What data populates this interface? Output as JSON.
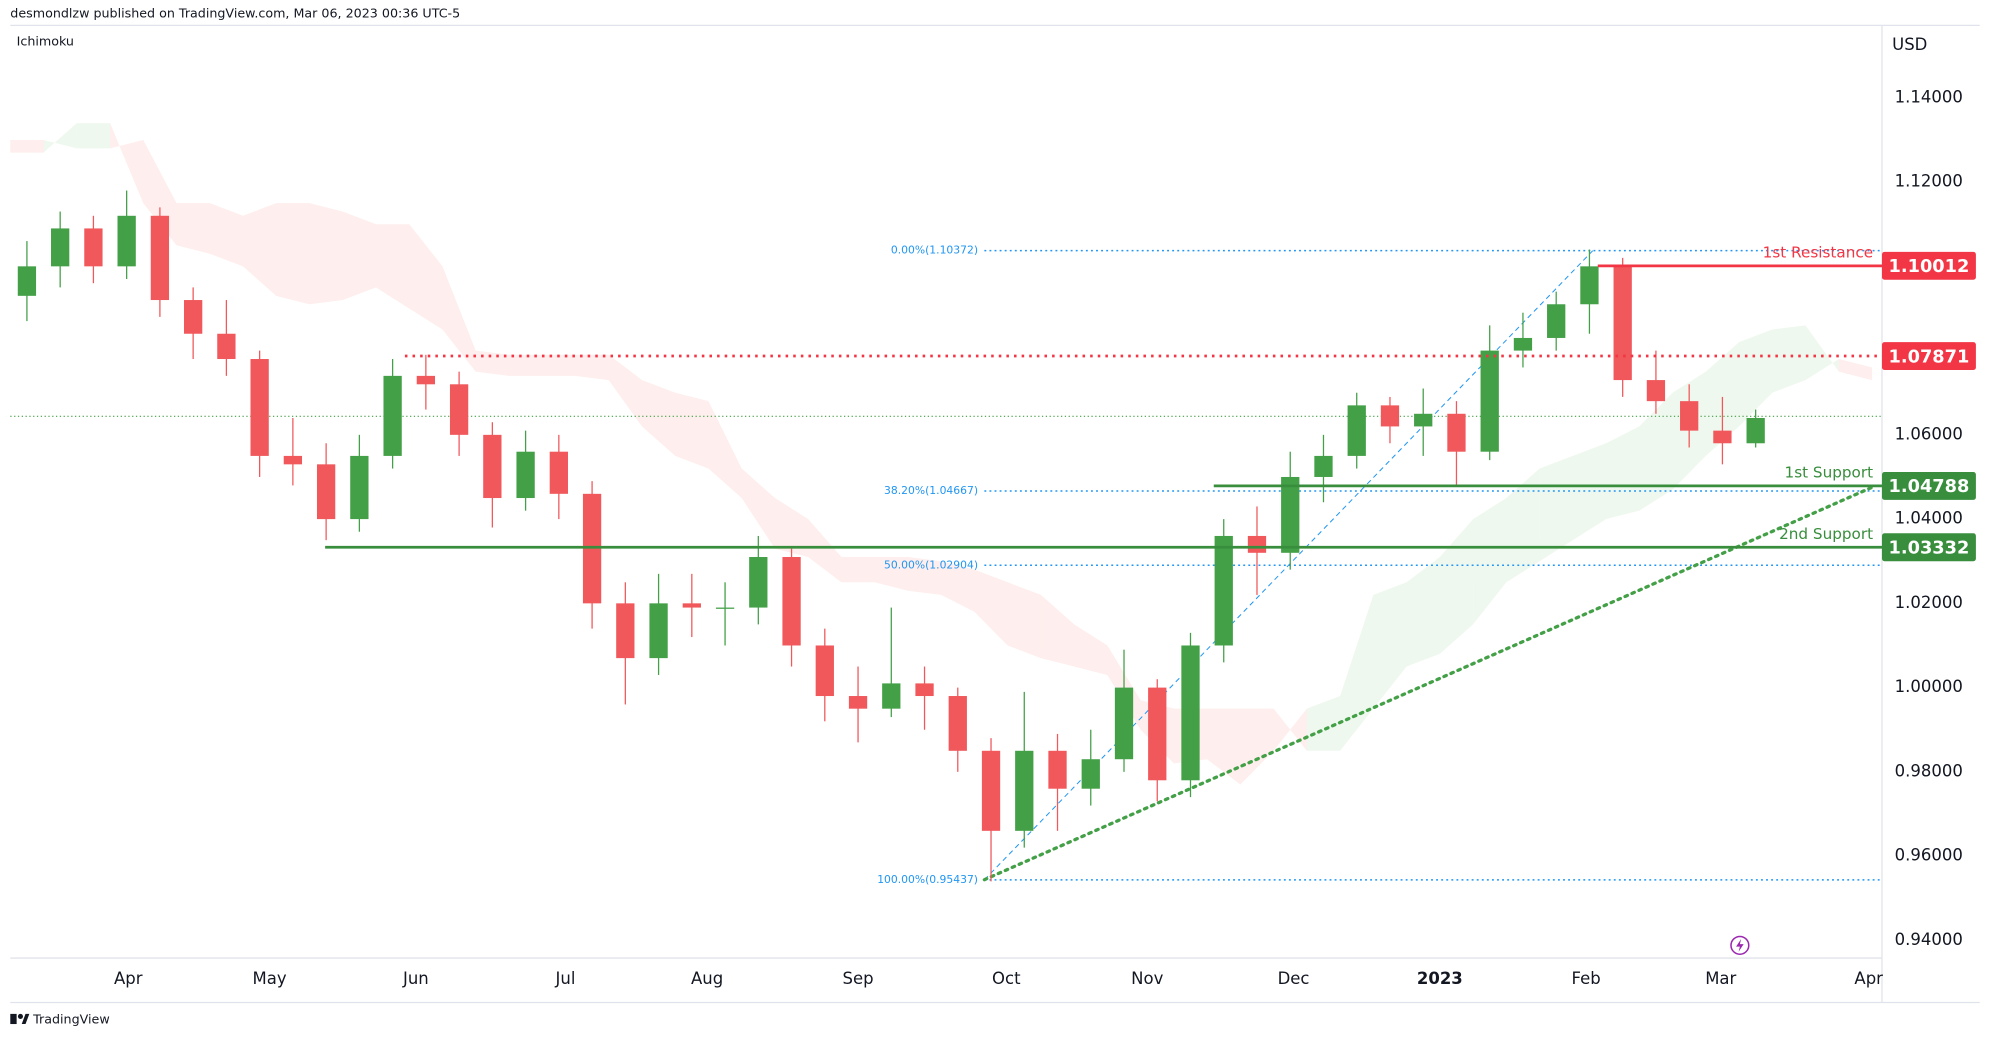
{
  "chart_data": {
    "type": "candlestick",
    "header": "desmondlzw published on TradingView.com, Mar 06, 2023 00:36 UTC-5",
    "title": "Ichimoku",
    "currency": "USD",
    "brand": "TradingView",
    "colors": {
      "up": "#43a047",
      "down": "#f0585b",
      "cloud_up": "#4caf50",
      "cloud_down": "#f44336"
    },
    "xlim": [
      0,
      56.3
    ],
    "xticks": [
      {
        "value": 3.55,
        "label": "Apr"
      },
      {
        "value": 7.8,
        "label": "May"
      },
      {
        "value": 12.2,
        "label": "Jun"
      },
      {
        "value": 16.7,
        "label": "Jul"
      },
      {
        "value": 20.96,
        "label": "Aug"
      },
      {
        "value": 25.5,
        "label": "Sep"
      },
      {
        "value": 29.96,
        "label": "Oct"
      },
      {
        "value": 34.2,
        "label": "Nov"
      },
      {
        "value": 38.6,
        "label": "Dec"
      },
      {
        "value": 43.0,
        "label": "2023"
      },
      {
        "value": 47.4,
        "label": "Feb"
      },
      {
        "value": 51.45,
        "label": "Mar"
      },
      {
        "value": 55.9,
        "label": "Apr"
      }
    ],
    "ylim": [
      0.9358,
      1.1572
    ],
    "yticks": [
      {
        "value": 1.14,
        "label": "1.14000"
      },
      {
        "value": 1.12,
        "label": "1.12000"
      },
      {
        "value": 1.06,
        "label": "1.06000"
      },
      {
        "value": 1.04,
        "label": "1.04000"
      },
      {
        "value": 1.02,
        "label": "1.02000"
      },
      {
        "value": 1.0,
        "label": "1.00000"
      },
      {
        "value": 0.98,
        "label": "0.98000"
      },
      {
        "value": 0.96,
        "label": "0.96000"
      },
      {
        "value": 0.94,
        "label": "0.94000"
      }
    ],
    "ohlc": [
      [
        1.093,
        1.106,
        1.087,
        1.1
      ],
      [
        1.1,
        1.113,
        1.095,
        1.109
      ],
      [
        1.109,
        1.112,
        1.096,
        1.1
      ],
      [
        1.1,
        1.118,
        1.097,
        1.112
      ],
      [
        1.112,
        1.114,
        1.088,
        1.092
      ],
      [
        1.092,
        1.095,
        1.078,
        1.084
      ],
      [
        1.084,
        1.092,
        1.074,
        1.078
      ],
      [
        1.078,
        1.08,
        1.05,
        1.055
      ],
      [
        1.055,
        1.064,
        1.048,
        1.053
      ],
      [
        1.053,
        1.058,
        1.035,
        1.04
      ],
      [
        1.04,
        1.06,
        1.037,
        1.055
      ],
      [
        1.055,
        1.078,
        1.052,
        1.074
      ],
      [
        1.074,
        1.079,
        1.066,
        1.072
      ],
      [
        1.072,
        1.075,
        1.055,
        1.06
      ],
      [
        1.06,
        1.063,
        1.038,
        1.045
      ],
      [
        1.045,
        1.061,
        1.042,
        1.056
      ],
      [
        1.056,
        1.06,
        1.04,
        1.046
      ],
      [
        1.046,
        1.049,
        1.014,
        1.02
      ],
      [
        1.02,
        1.025,
        0.996,
        1.007
      ],
      [
        1.007,
        1.027,
        1.003,
        1.02
      ],
      [
        1.02,
        1.027,
        1.012,
        1.019
      ],
      [
        1.019,
        1.025,
        1.01,
        1.019
      ],
      [
        1.019,
        1.036,
        1.015,
        1.031
      ],
      [
        1.031,
        1.033,
        1.005,
        1.01
      ],
      [
        1.01,
        1.014,
        0.992,
        0.998
      ],
      [
        0.998,
        1.005,
        0.987,
        0.995
      ],
      [
        0.995,
        1.019,
        0.993,
        1.001
      ],
      [
        1.001,
        1.005,
        0.99,
        0.998
      ],
      [
        0.998,
        1.0,
        0.98,
        0.985
      ],
      [
        0.985,
        0.988,
        0.954,
        0.966
      ],
      [
        0.966,
        0.999,
        0.962,
        0.985
      ],
      [
        0.985,
        0.989,
        0.966,
        0.976
      ],
      [
        0.976,
        0.99,
        0.972,
        0.983
      ],
      [
        0.983,
        1.009,
        0.98,
        1.0
      ],
      [
        1.0,
        1.002,
        0.973,
        0.978
      ],
      [
        0.978,
        1.013,
        0.974,
        1.01
      ],
      [
        1.01,
        1.04,
        1.006,
        1.036
      ],
      [
        1.036,
        1.043,
        1.022,
        1.032
      ],
      [
        1.032,
        1.056,
        1.028,
        1.05
      ],
      [
        1.05,
        1.06,
        1.044,
        1.055
      ],
      [
        1.055,
        1.07,
        1.052,
        1.067
      ],
      [
        1.067,
        1.069,
        1.058,
        1.062
      ],
      [
        1.062,
        1.071,
        1.055,
        1.065
      ],
      [
        1.065,
        1.068,
        1.048,
        1.056
      ],
      [
        1.056,
        1.086,
        1.054,
        1.08
      ],
      [
        1.08,
        1.089,
        1.076,
        1.083
      ],
      [
        1.083,
        1.094,
        1.08,
        1.091
      ],
      [
        1.091,
        1.104,
        1.084,
        1.1
      ],
      [
        1.1,
        1.102,
        1.069,
        1.073
      ],
      [
        1.073,
        1.08,
        1.065,
        1.068
      ],
      [
        1.068,
        1.072,
        1.057,
        1.061
      ],
      [
        1.061,
        1.069,
        1.053,
        1.058
      ],
      [
        1.058,
        1.066,
        1.057,
        1.064
      ]
    ],
    "cloud": {
      "span_a": [
        1.127,
        1.127,
        1.134,
        1.134,
        1.115,
        1.105,
        1.103,
        1.1,
        1.093,
        1.091,
        1.092,
        1.095,
        1.09,
        1.085,
        1.075,
        1.074,
        1.074,
        1.074,
        1.073,
        1.062,
        1.055,
        1.052,
        1.045,
        1.033,
        1.031,
        1.025,
        1.025,
        1.023,
        1.022,
        1.018,
        1.01,
        1.007,
        1.005,
        1.003,
        0.99,
        0.982,
        0.983,
        0.977,
        0.985,
        0.995,
        0.998,
        1.022,
        1.025,
        1.031,
        1.04,
        1.045,
        1.052,
        1.055,
        1.058,
        1.062,
        1.07,
        1.075,
        1.082,
        1.085,
        1.086,
        1.075,
        1.073
      ],
      "span_b": [
        1.13,
        1.13,
        1.128,
        1.128,
        1.13,
        1.115,
        1.115,
        1.112,
        1.115,
        1.115,
        1.113,
        1.11,
        1.11,
        1.1,
        1.08,
        1.079,
        1.079,
        1.079,
        1.079,
        1.073,
        1.07,
        1.068,
        1.052,
        1.045,
        1.04,
        1.031,
        1.031,
        1.031,
        1.03,
        1.028,
        1.025,
        1.022,
        1.015,
        1.01,
        0.997,
        0.995,
        0.995,
        0.995,
        0.995,
        0.985,
        0.985,
        0.995,
        1.005,
        1.008,
        1.015,
        1.025,
        1.03,
        1.035,
        1.04,
        1.042,
        1.047,
        1.055,
        1.062,
        1.07,
        1.073,
        1.078,
        1.076
      ]
    },
    "last_price": 1.0644,
    "levels": [
      {
        "name": "1st Resistance",
        "value": 1.10012,
        "from": 47.75,
        "color": "#f23645",
        "style": "solid"
      },
      {
        "value": 1.07871,
        "from": 11.87,
        "color": "#f23645",
        "style": "dotted"
      },
      {
        "name": "1st Support",
        "value": 1.04788,
        "from": 36.2,
        "color": "#388e3c",
        "style": "solid"
      },
      {
        "name": "2nd Support",
        "value": 1.03332,
        "from": 9.47,
        "color": "#388e3c",
        "style": "solid"
      }
    ],
    "fibonacci": {
      "from": 29.3,
      "to": 47.6,
      "color": "#2196f3",
      "levels": [
        {
          "label": "0.00%(1.10372)",
          "value": 1.10372
        },
        {
          "label": "38.20%(1.04667)",
          "value": 1.04667
        },
        {
          "label": "50.00%(1.02904)",
          "value": 1.02904
        },
        {
          "label": "100.00%(0.95437)",
          "value": 0.95437
        }
      ]
    },
    "trendline": {
      "x": [
        29.3,
        56.1
      ],
      "y": [
        0.9544,
        1.0479
      ],
      "color": "#43a047"
    }
  }
}
